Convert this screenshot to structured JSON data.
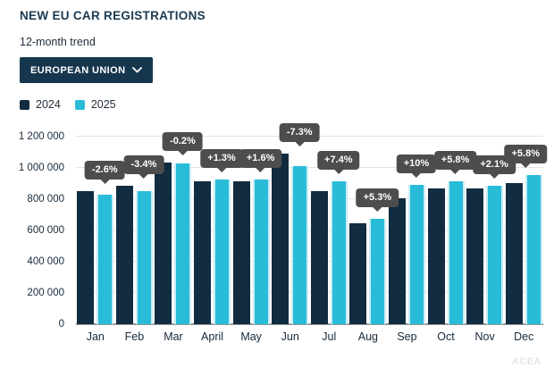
{
  "header": {
    "title": "NEW EU CAR REGISTRATIONS",
    "subtitle": "12-month trend"
  },
  "filter": {
    "label": "EUROPEAN UNION"
  },
  "legend": [
    {
      "label": "2024",
      "color": "#112c40"
    },
    {
      "label": "2025",
      "color": "#29bcd8"
    }
  ],
  "watermark": "ACEA",
  "colors": {
    "bar_2024": "#112c40",
    "bar_2025": "#29bcd8",
    "tooltip_bg": "#4d4d4d",
    "gridline": "#e3e3e3",
    "axis_line": "#93989d"
  },
  "chart_data": {
    "type": "bar",
    "title": "NEW EU CAR REGISTRATIONS",
    "subtitle": "12-month trend",
    "categories": [
      "Jan",
      "Feb",
      "Mar",
      "April",
      "May",
      "Jun",
      "Jul",
      "Aug",
      "Sep",
      "Oct",
      "Nov",
      "Dec"
    ],
    "series": [
      {
        "name": "2024",
        "color": "#112c40",
        "values": [
          854000,
          884000,
          1032000,
          914000,
          912000,
          1090000,
          852000,
          643000,
          808000,
          866000,
          870000,
          905000
        ]
      },
      {
        "name": "2025",
        "color": "#29bcd8",
        "values": [
          831000,
          854000,
          1030000,
          926000,
          927000,
          1010000,
          915000,
          677000,
          889000,
          916000,
          888000,
          957000
        ]
      }
    ],
    "deltas": [
      "-2.6%",
      "-3.4%",
      "-0.2%",
      "+1.3%",
      "+1.6%",
      "-7.3%",
      "+7.4%",
      "+5.3%",
      "+10%",
      "+5.8%",
      "+2.1%",
      "+5.8%"
    ],
    "xlabel": "",
    "ylabel": "",
    "ylim": [
      0,
      1200000
    ],
    "y_ticks": [
      "0",
      "200 000",
      "400 000",
      "600 000",
      "800 000",
      "1 000 000",
      "1 200 000"
    ],
    "grid": true,
    "legend_position": "top-left"
  }
}
